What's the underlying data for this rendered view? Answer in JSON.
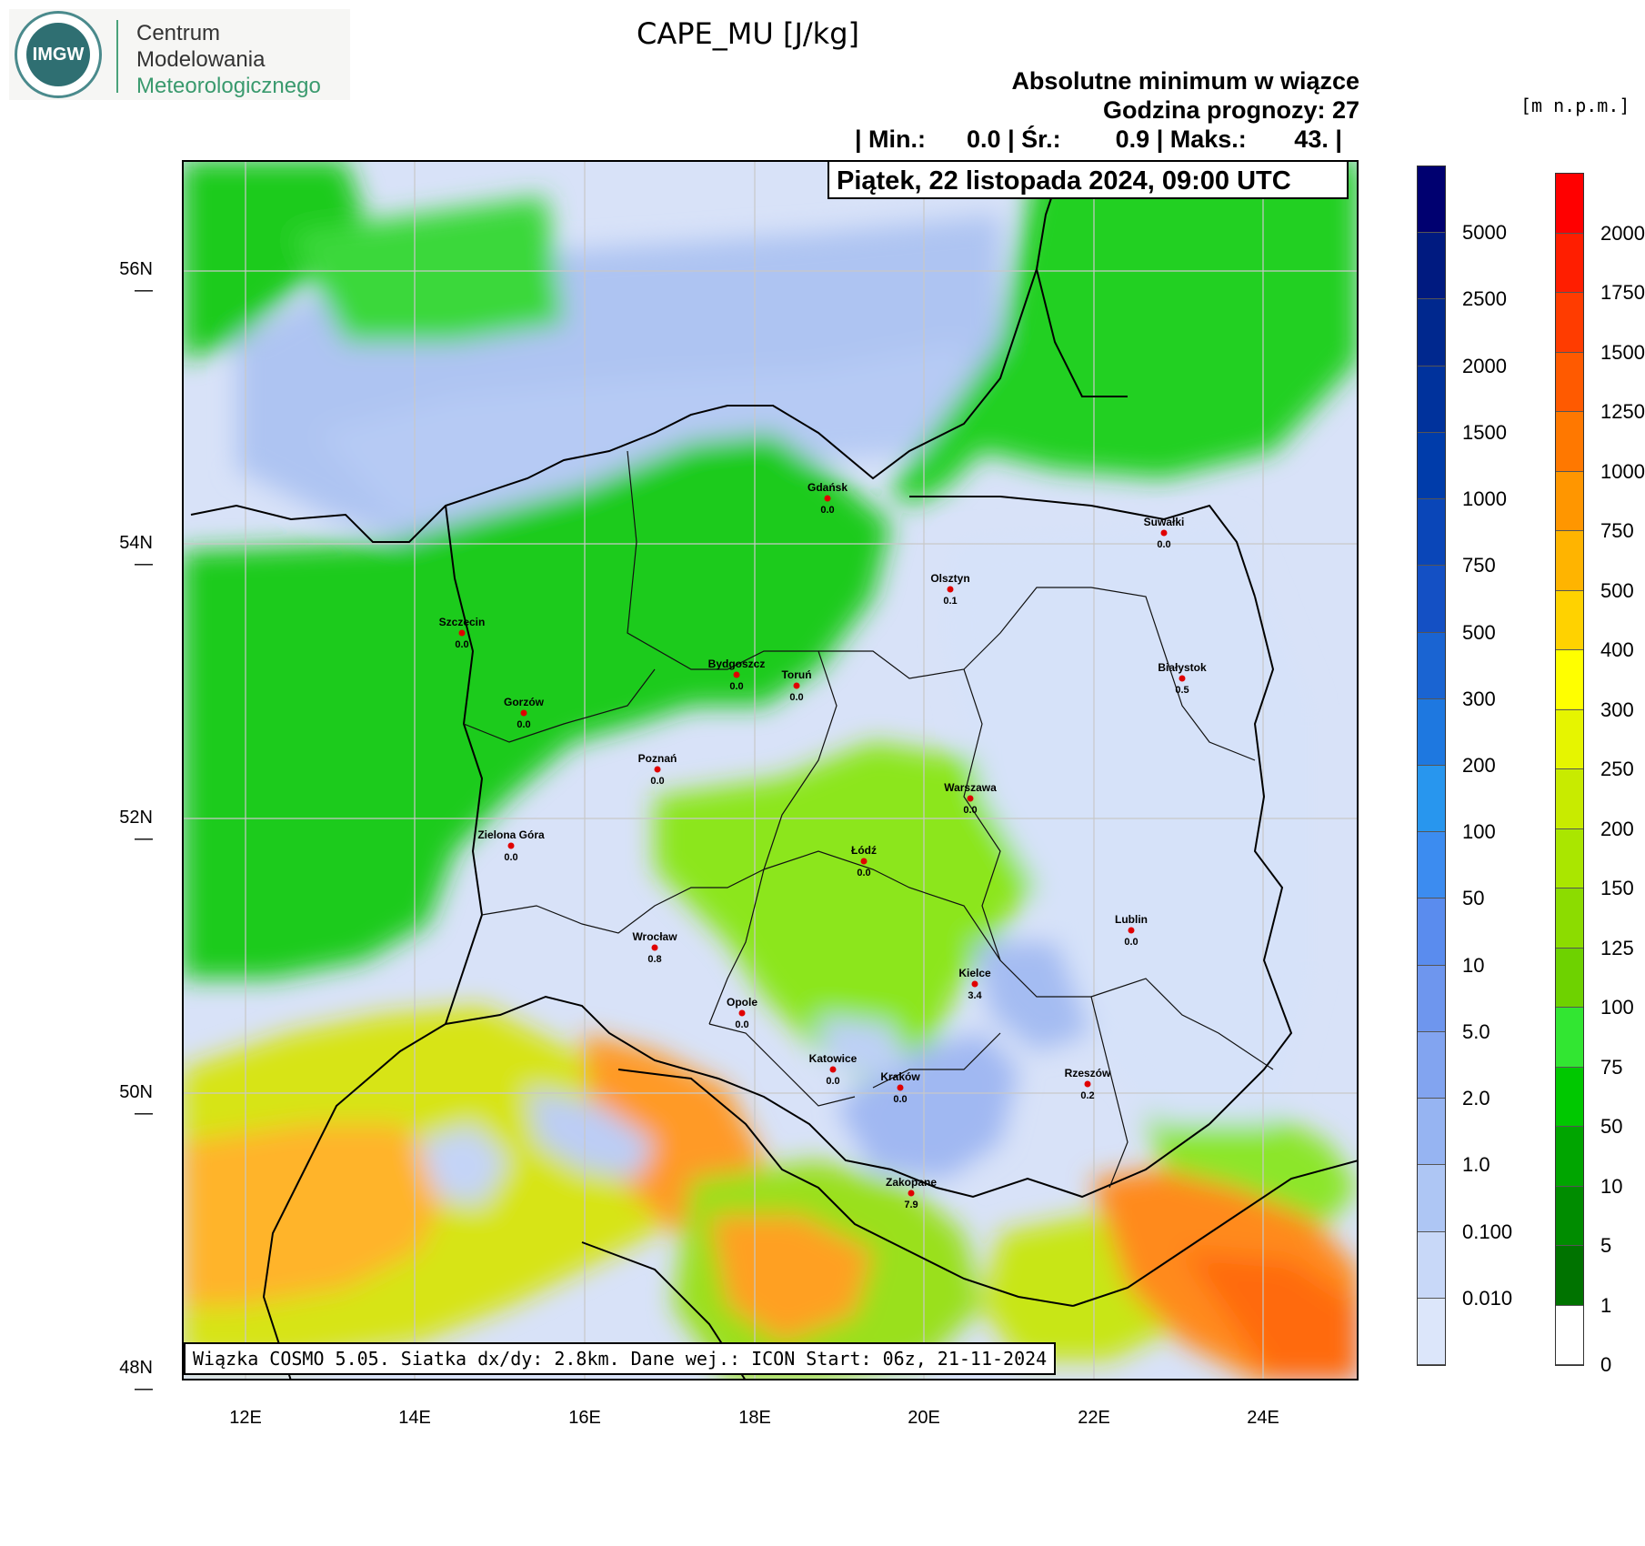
{
  "logo": {
    "badge": "IMGW",
    "line1": "Centrum",
    "line2": "Modelowania",
    "line3": "Meteorologicznego"
  },
  "title": "CAPE_MU [J/kg]",
  "subtitle1": "Absolutne minimum w wiązce",
  "subtitle2": "Godzina prognozy: 27",
  "stats": "| Min.:      0.0 | Śr.:        0.9 | Maks.:       43. |",
  "date": "Piątek, 22 listopada 2024, 09:00 UTC",
  "units": "[m n.p.m.]",
  "footer": "Wiązka COSMO 5.05. Siatka dx/dy: 2.8km. Dane wej.: ICON Start: 06z, 21-11-2024",
  "lat_labels": [
    "56N",
    "54N",
    "52N",
    "50N",
    "48N"
  ],
  "lon_labels": [
    "12E",
    "14E",
    "16E",
    "18E",
    "20E",
    "22E",
    "24E"
  ],
  "cities": [
    {
      "name": "Gdańsk",
      "value": "0.0"
    },
    {
      "name": "Suwałki",
      "value": "0.0"
    },
    {
      "name": "Olsztyn",
      "value": "0.1"
    },
    {
      "name": "Szczecin",
      "value": "0.0"
    },
    {
      "name": "Bydgoszcz",
      "value": "0.0"
    },
    {
      "name": "Toruń",
      "value": "0.0"
    },
    {
      "name": "Białystok",
      "value": "0.5"
    },
    {
      "name": "Gorzów",
      "value": "0.0"
    },
    {
      "name": "Poznań",
      "value": "0.0"
    },
    {
      "name": "Warszawa",
      "value": "0.0"
    },
    {
      "name": "Zielona Góra",
      "value": "0.0"
    },
    {
      "name": "Łódź",
      "value": "0.0"
    },
    {
      "name": "Lublin",
      "value": "0.0"
    },
    {
      "name": "Wrocław",
      "value": "0.8"
    },
    {
      "name": "Kielce",
      "value": "3.4"
    },
    {
      "name": "Opole",
      "value": "0.0"
    },
    {
      "name": "Katowice",
      "value": "0.0"
    },
    {
      "name": "Kraków",
      "value": "0.0"
    },
    {
      "name": "Rzeszów",
      "value": "0.2"
    },
    {
      "name": "Zakopane",
      "value": "7.9"
    }
  ],
  "colorbar_blue": {
    "labels": [
      "5000",
      "2500",
      "2000",
      "1500",
      "1000",
      "750",
      "500",
      "300",
      "200",
      "100",
      "50",
      "10",
      "5.0",
      "2.0",
      "1.0",
      "0.100",
      "0.010"
    ],
    "colors": [
      "#000070",
      "#001a80",
      "#00288e",
      "#00329c",
      "#003caa",
      "#0a46b8",
      "#1450c4",
      "#1a64d2",
      "#1e78e0",
      "#2896ee",
      "#3c8cf0",
      "#5a8cee",
      "#6e96ee",
      "#82a4f0",
      "#96b4f2",
      "#aec6f4",
      "#c8d8f8",
      "#dce6fa"
    ]
  },
  "colorbar_terrain": {
    "labels": [
      "2000",
      "1750",
      "1500",
      "1250",
      "1000",
      "750",
      "500",
      "400",
      "300",
      "250",
      "200",
      "150",
      "125",
      "100",
      "75",
      "50",
      "10",
      "5",
      "1",
      "0"
    ],
    "colors": [
      "#ff0000",
      "#ff1e00",
      "#ff3c00",
      "#ff5a00",
      "#ff7800",
      "#ff9600",
      "#ffb400",
      "#ffd200",
      "#ffff00",
      "#e6f500",
      "#c8eb00",
      "#aae600",
      "#8cdc00",
      "#6ed200",
      "#32e632",
      "#00c800",
      "#00a500",
      "#008c00",
      "#007300",
      "#ffffff"
    ]
  }
}
